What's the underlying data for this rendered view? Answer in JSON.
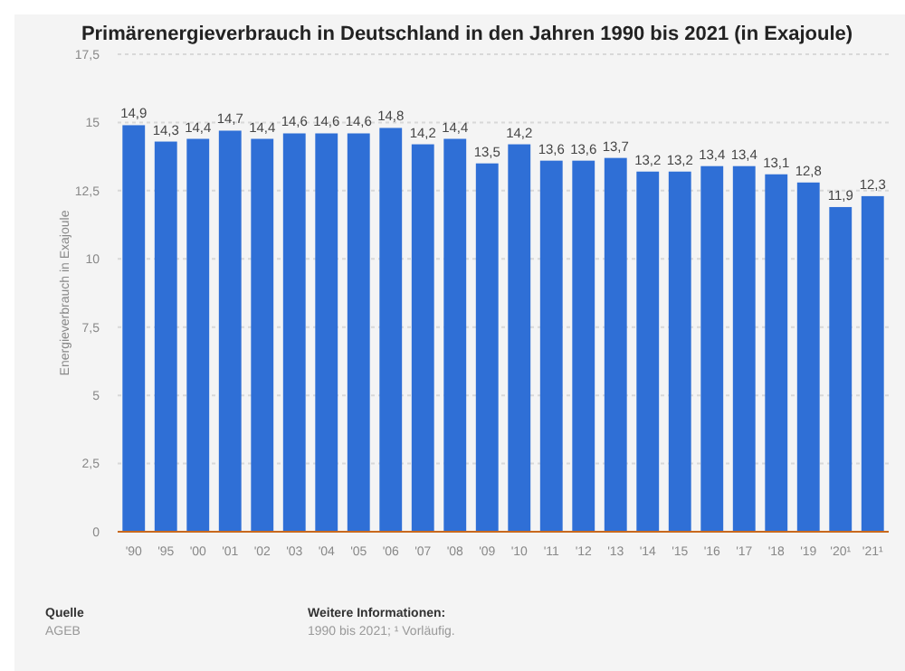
{
  "chart_data": {
    "type": "bar",
    "title": "Primärenergieverbrauch in Deutschland in den Jahren 1990 bis 2021 (in Exajoule)",
    "ylabel": "Energieverbrauch in Exajoule",
    "categories": [
      "'90",
      "'95",
      "'00",
      "'01",
      "'02",
      "'03",
      "'04",
      "'05",
      "'06",
      "'07",
      "'08",
      "'09",
      "'10",
      "'11",
      "'12",
      "'13",
      "'14",
      "'15",
      "'16",
      "'17",
      "'18",
      "'19",
      "'20¹",
      "'21¹"
    ],
    "values": [
      14.9,
      14.3,
      14.4,
      14.7,
      14.4,
      14.6,
      14.6,
      14.6,
      14.8,
      14.2,
      14.4,
      13.5,
      14.2,
      13.6,
      13.6,
      13.7,
      13.2,
      13.2,
      13.4,
      13.4,
      13.1,
      12.8,
      11.9,
      12.3
    ],
    "value_labels": [
      "14,9",
      "14,3",
      "14,4",
      "14,7",
      "14,4",
      "14,6",
      "14,6",
      "14,6",
      "14,8",
      "14,2",
      "14,4",
      "13,5",
      "14,2",
      "13,6",
      "13,6",
      "13,7",
      "13,2",
      "13,2",
      "13,4",
      "13,4",
      "13,1",
      "12,8",
      "11,9",
      "12,3"
    ],
    "color": "#2f6fd6",
    "ylim": [
      0,
      17.5
    ],
    "yticks": [
      {
        "value": 0,
        "label": "0"
      },
      {
        "value": 2.5,
        "label": "2,5"
      },
      {
        "value": 5,
        "label": "5"
      },
      {
        "value": 7.5,
        "label": "7,5"
      },
      {
        "value": 10,
        "label": "10"
      },
      {
        "value": 12.5,
        "label": "12,5"
      },
      {
        "value": 15,
        "label": "15"
      },
      {
        "value": 17.5,
        "label": "17,5"
      }
    ],
    "grid": "y",
    "annotations": [
      "Quelle",
      "AGEB",
      "Weitere Informationen:",
      "1990 bis 2021; ¹ Vorläufig."
    ]
  }
}
